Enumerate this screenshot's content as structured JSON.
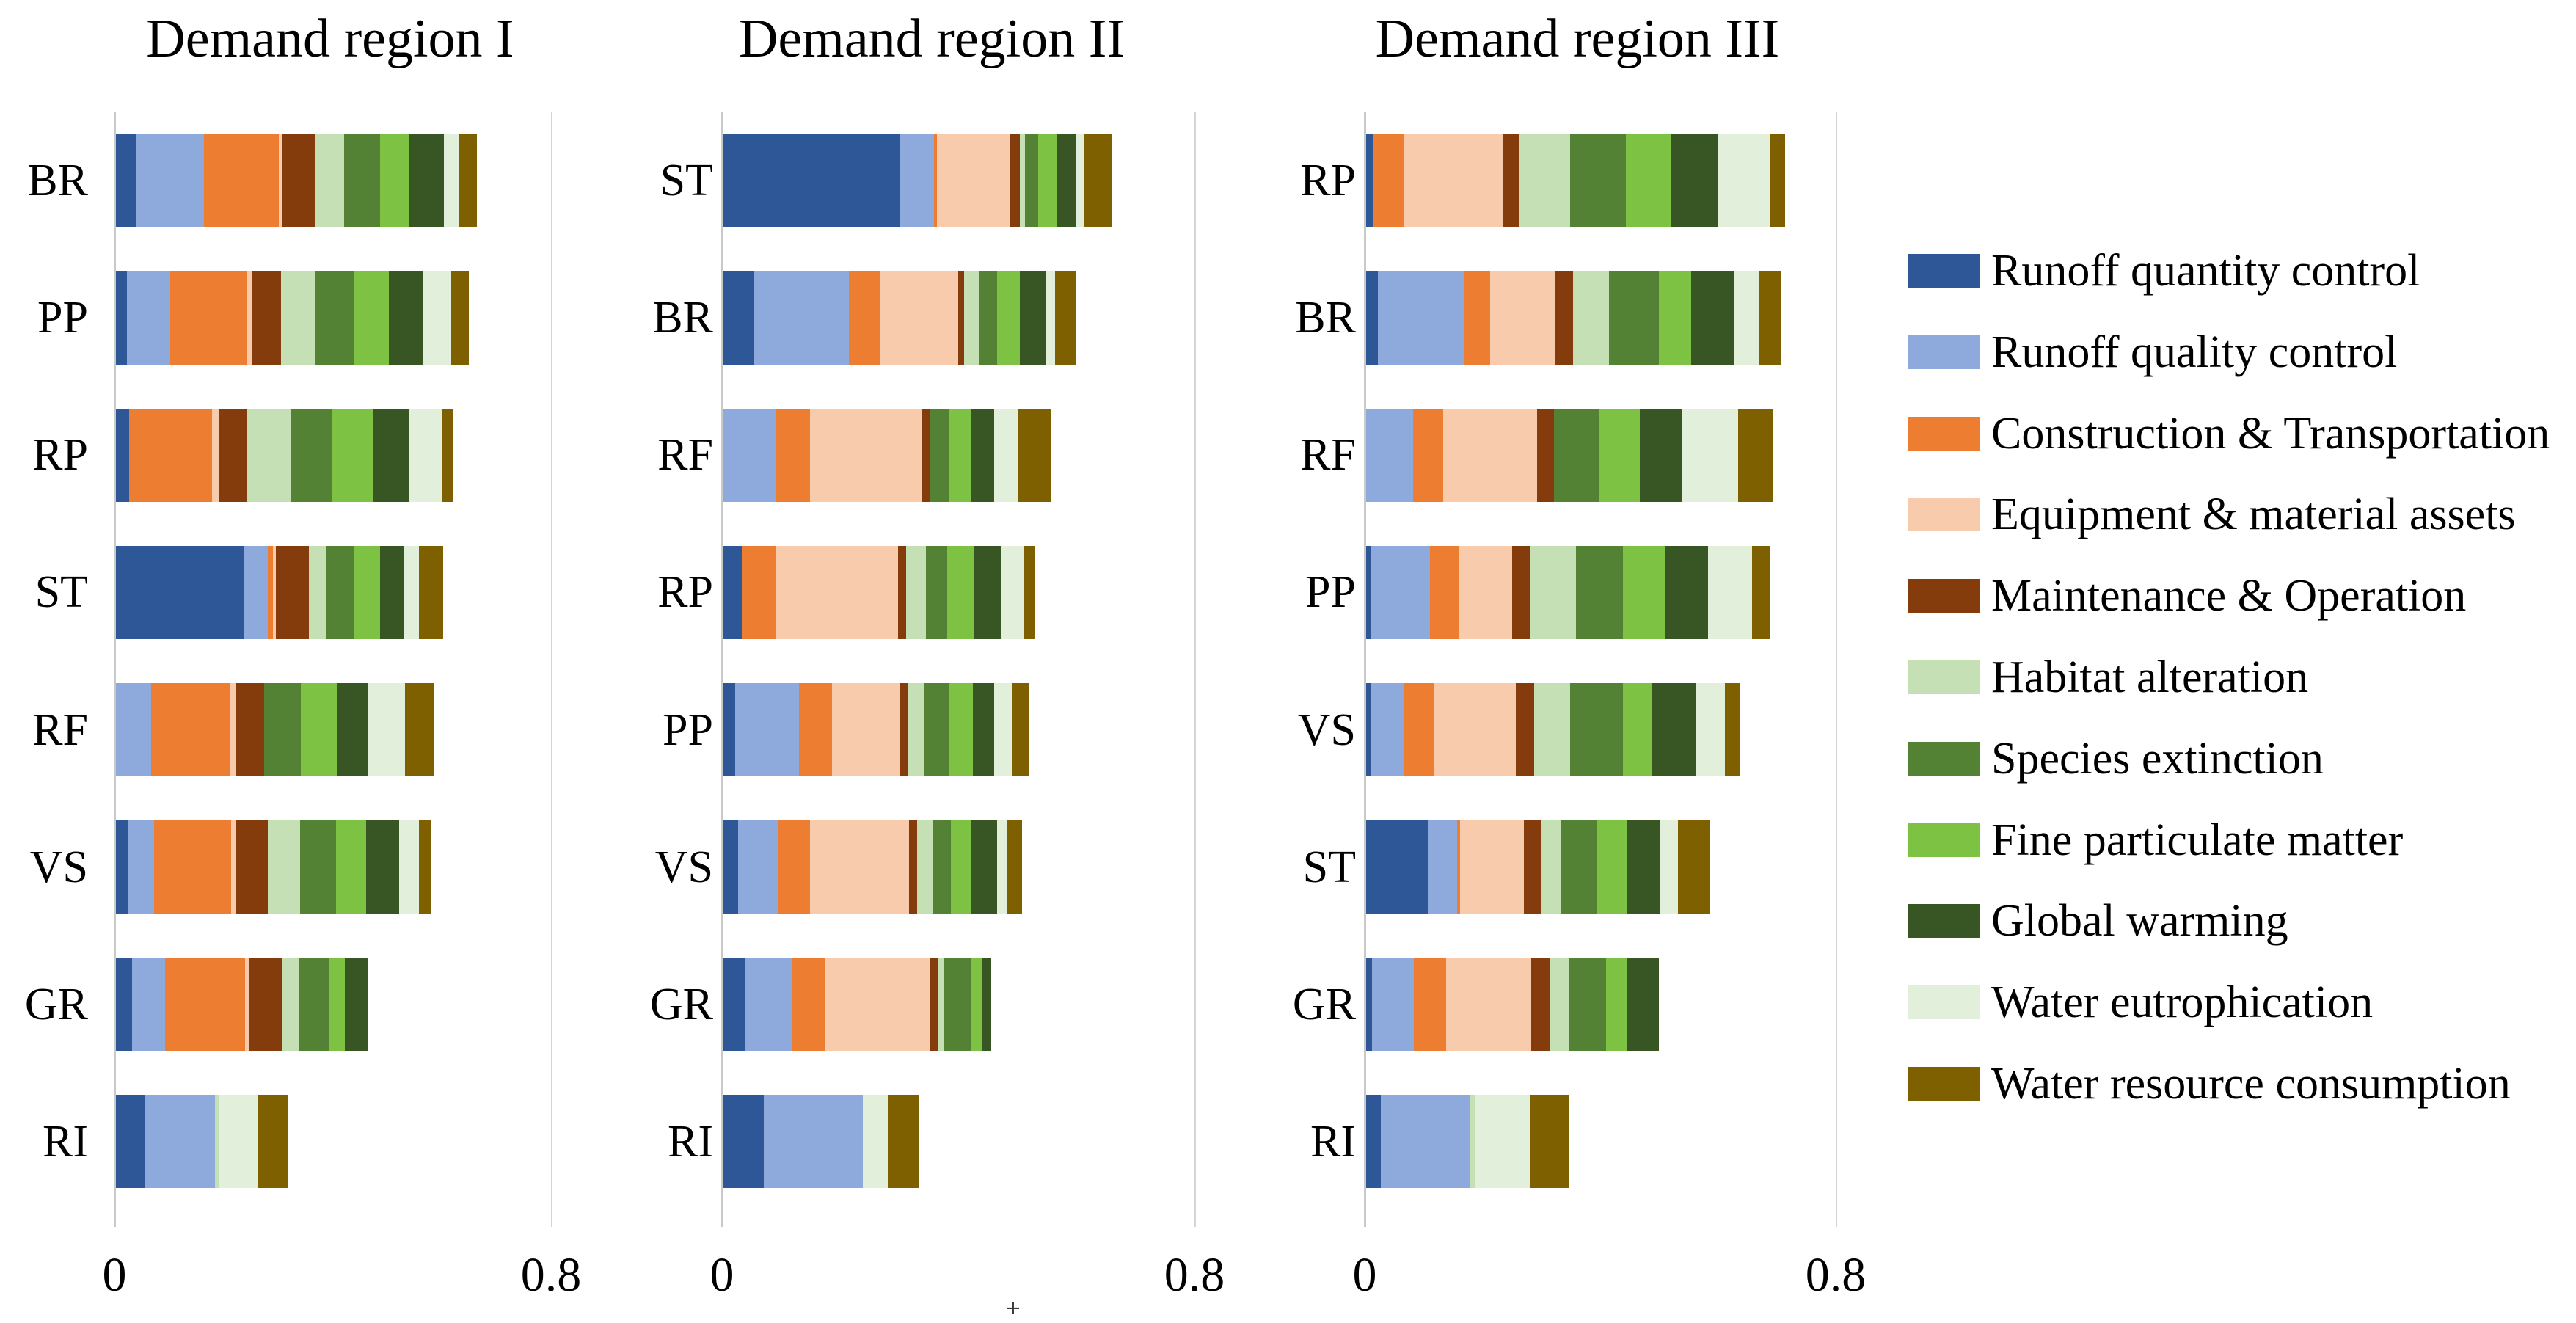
{
  "figure": {
    "artifact_text": "+"
  },
  "chart_data": {
    "type": "bar",
    "stacked": true,
    "orientation": "horizontal",
    "x_axis": {
      "min": 0,
      "max": 0.8,
      "tick_labels": [
        "0",
        "0.8"
      ],
      "gridlines": "at 0 and 0.8 only"
    },
    "legend_position": "right",
    "series": [
      {
        "name": "Runoff quantity control",
        "color": "#2E5797"
      },
      {
        "name": "Runoff quality control",
        "color": "#8EA9DB"
      },
      {
        "name": "Construction & Transportation",
        "color": "#ED7D31"
      },
      {
        "name": "Equipment & material assets",
        "color": "#F8CBAD"
      },
      {
        "name": "Maintenance & Operation",
        "color": "#843C0C"
      },
      {
        "name": "Habitat alteration",
        "color": "#C5E0B4"
      },
      {
        "name": "Species extinction",
        "color": "#548235"
      },
      {
        "name": "Fine particulate matter",
        "color": "#7DC242"
      },
      {
        "name": "Global warming",
        "color": "#375623"
      },
      {
        "name": "Water eutrophication",
        "color": "#E2EFDA"
      },
      {
        "name": "Water resource consumption",
        "color": "#7F6000"
      }
    ],
    "panels": [
      {
        "title": "Demand region I",
        "rows": [
          {
            "label": "BR",
            "values": [
              0.037,
              0.125,
              0.137,
              0.005,
              0.062,
              0.052,
              0.066,
              0.053,
              0.064,
              0.028,
              0.033
            ]
          },
          {
            "label": "PP",
            "values": [
              0.02,
              0.08,
              0.141,
              0.009,
              0.053,
              0.062,
              0.071,
              0.064,
              0.063,
              0.052,
              0.032
            ]
          },
          {
            "label": "RP",
            "values": [
              0.024,
              0.0,
              0.152,
              0.013,
              0.051,
              0.082,
              0.074,
              0.074,
              0.066,
              0.063,
              0.019
            ]
          },
          {
            "label": "ST",
            "values": [
              0.235,
              0.043,
              0.01,
              0.005,
              0.061,
              0.03,
              0.053,
              0.047,
              0.044,
              0.028,
              0.044
            ]
          },
          {
            "label": "RF",
            "values": [
              0.0,
              0.064,
              0.146,
              0.011,
              0.051,
              0.0,
              0.067,
              0.066,
              0.057,
              0.068,
              0.052
            ]
          },
          {
            "label": "VS",
            "values": [
              0.023,
              0.047,
              0.141,
              0.008,
              0.06,
              0.058,
              0.067,
              0.055,
              0.06,
              0.036,
              0.023
            ]
          },
          {
            "label": "GR",
            "values": [
              0.03,
              0.06,
              0.146,
              0.009,
              0.059,
              0.031,
              0.055,
              0.029,
              0.042,
              0.0,
              0.0
            ]
          },
          {
            "label": "RI",
            "values": [
              0.054,
              0.127,
              0.0,
              0.0,
              0.0,
              0.009,
              0.0,
              0.0,
              0.0,
              0.069,
              0.056
            ]
          }
        ]
      },
      {
        "title": "Demand region II",
        "rows": [
          {
            "label": "ST",
            "values": [
              0.299,
              0.058,
              0.004,
              0.123,
              0.018,
              0.009,
              0.022,
              0.031,
              0.034,
              0.012,
              0.049
            ]
          },
          {
            "label": "BR",
            "values": [
              0.051,
              0.161,
              0.053,
              0.132,
              0.011,
              0.026,
              0.03,
              0.038,
              0.043,
              0.017,
              0.036
            ]
          },
          {
            "label": "RF",
            "values": [
              0.0,
              0.09,
              0.056,
              0.191,
              0.013,
              0.0,
              0.031,
              0.038,
              0.039,
              0.041,
              0.055
            ]
          },
          {
            "label": "RP",
            "values": [
              0.032,
              0.0,
              0.058,
              0.206,
              0.013,
              0.034,
              0.036,
              0.045,
              0.046,
              0.039,
              0.019
            ]
          },
          {
            "label": "PP",
            "values": [
              0.02,
              0.108,
              0.056,
              0.115,
              0.013,
              0.029,
              0.04,
              0.041,
              0.036,
              0.031,
              0.029
            ]
          },
          {
            "label": "VS",
            "values": [
              0.025,
              0.067,
              0.055,
              0.167,
              0.014,
              0.026,
              0.031,
              0.034,
              0.044,
              0.017,
              0.026
            ]
          },
          {
            "label": "GR",
            "values": [
              0.036,
              0.081,
              0.056,
              0.177,
              0.013,
              0.011,
              0.045,
              0.018,
              0.016,
              0.0,
              0.0
            ]
          },
          {
            "label": "RI",
            "values": [
              0.068,
              0.168,
              0.0,
              0.0,
              0.0,
              0.0,
              0.0,
              0.0,
              0.0,
              0.042,
              0.054
            ]
          }
        ]
      },
      {
        "title": "Demand region III",
        "rows": [
          {
            "label": "RP",
            "values": [
              0.012,
              0.0,
              0.053,
              0.167,
              0.027,
              0.087,
              0.095,
              0.076,
              0.081,
              0.089,
              0.024
            ]
          },
          {
            "label": "BR",
            "values": [
              0.02,
              0.147,
              0.044,
              0.111,
              0.029,
              0.061,
              0.085,
              0.055,
              0.074,
              0.042,
              0.038
            ]
          },
          {
            "label": "RF",
            "values": [
              0.0,
              0.08,
              0.051,
              0.159,
              0.029,
              0.0,
              0.076,
              0.07,
              0.072,
              0.095,
              0.058
            ]
          },
          {
            "label": "PP",
            "values": [
              0.007,
              0.102,
              0.049,
              0.09,
              0.031,
              0.077,
              0.08,
              0.072,
              0.073,
              0.074,
              0.032
            ]
          },
          {
            "label": "VS",
            "values": [
              0.009,
              0.056,
              0.051,
              0.138,
              0.031,
              0.061,
              0.09,
              0.05,
              0.073,
              0.051,
              0.024
            ]
          },
          {
            "label": "ST",
            "values": [
              0.105,
              0.05,
              0.004,
              0.109,
              0.029,
              0.034,
              0.061,
              0.05,
              0.056,
              0.032,
              0.055
            ]
          },
          {
            "label": "GR",
            "values": [
              0.01,
              0.071,
              0.055,
              0.145,
              0.031,
              0.032,
              0.064,
              0.035,
              0.054,
              0.0,
              0.0
            ]
          },
          {
            "label": "RI",
            "values": [
              0.025,
              0.151,
              0.0,
              0.0,
              0.0,
              0.01,
              0.0,
              0.0,
              0.0,
              0.093,
              0.065
            ]
          }
        ]
      }
    ]
  }
}
